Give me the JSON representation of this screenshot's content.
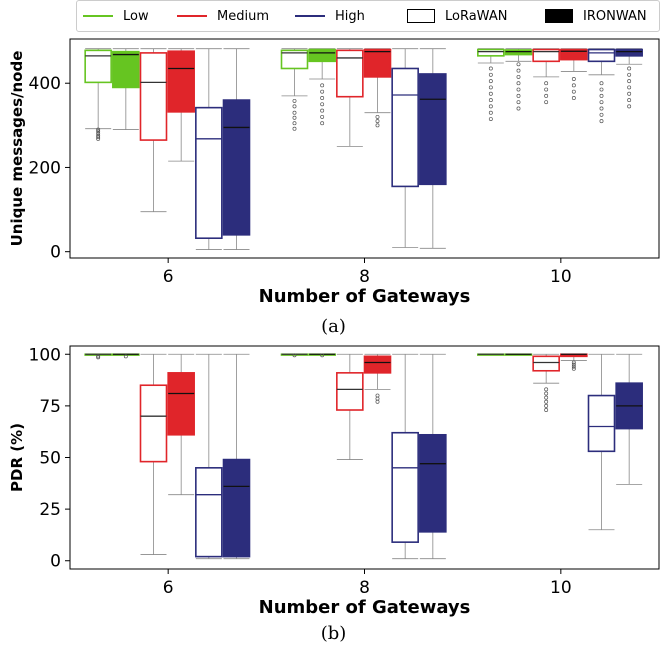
{
  "legend": {
    "levels": [
      {
        "label": "Low",
        "color": "#66c521"
      },
      {
        "label": "Medium",
        "color": "#e0252a"
      },
      {
        "label": "High",
        "color": "#2c2d7c"
      }
    ],
    "schemes": [
      {
        "label": "LoRaWAN",
        "style": "outline"
      },
      {
        "label": "IRONWAN",
        "style": "filled"
      }
    ]
  },
  "chart_data": [
    {
      "type": "box",
      "caption": "(a)",
      "xlabel": "Number of Gateways",
      "ylabel": "Unique messages/node",
      "categories": [
        "6",
        "8",
        "10"
      ],
      "ylim": [
        -15,
        505
      ],
      "yticks": [
        0,
        200,
        400
      ],
      "boxes": [
        {
          "gateways": "6",
          "level": "Low",
          "scheme": "LoRaWAN",
          "whislo": 292,
          "q1": 402,
          "med": 465,
          "q3": 478,
          "whishi": 482,
          "fliers": [
            268,
            272,
            276,
            281,
            286,
            290
          ]
        },
        {
          "gateways": "6",
          "level": "Low",
          "scheme": "IRONWAN",
          "whislo": 290,
          "q1": 390,
          "med": 468,
          "q3": 475,
          "whishi": 482,
          "fliers": []
        },
        {
          "gateways": "6",
          "level": "Medium",
          "scheme": "LoRaWAN",
          "whislo": 95,
          "q1": 265,
          "med": 402,
          "q3": 472,
          "whishi": 482,
          "fliers": []
        },
        {
          "gateways": "6",
          "level": "Medium",
          "scheme": "IRONWAN",
          "whislo": 215,
          "q1": 332,
          "med": 435,
          "q3": 476,
          "whishi": 482,
          "fliers": []
        },
        {
          "gateways": "6",
          "level": "High",
          "scheme": "LoRaWAN",
          "whislo": 5,
          "q1": 32,
          "med": 268,
          "q3": 342,
          "whishi": 482,
          "fliers": []
        },
        {
          "gateways": "6",
          "level": "High",
          "scheme": "IRONWAN",
          "whislo": 5,
          "q1": 40,
          "med": 295,
          "q3": 360,
          "whishi": 482,
          "fliers": []
        },
        {
          "gateways": "8",
          "level": "Low",
          "scheme": "LoRaWAN",
          "whislo": 370,
          "q1": 435,
          "med": 472,
          "q3": 478,
          "whishi": 482,
          "fliers": [
            292,
            305,
            318,
            330,
            345,
            358
          ]
        },
        {
          "gateways": "8",
          "level": "Low",
          "scheme": "IRONWAN",
          "whislo": 410,
          "q1": 452,
          "med": 472,
          "q3": 480,
          "whishi": 482,
          "fliers": [
            305,
            320,
            335,
            350,
            365,
            380,
            395
          ]
        },
        {
          "gateways": "8",
          "level": "Medium",
          "scheme": "LoRaWAN",
          "whislo": 250,
          "q1": 368,
          "med": 460,
          "q3": 478,
          "whishi": 482,
          "fliers": []
        },
        {
          "gateways": "8",
          "level": "Medium",
          "scheme": "IRONWAN",
          "whislo": 330,
          "q1": 415,
          "med": 475,
          "q3": 480,
          "whishi": 482,
          "fliers": [
            300,
            310,
            320
          ]
        },
        {
          "gateways": "8",
          "level": "High",
          "scheme": "LoRaWAN",
          "whislo": 10,
          "q1": 155,
          "med": 372,
          "q3": 435,
          "whishi": 482,
          "fliers": []
        },
        {
          "gateways": "8",
          "level": "High",
          "scheme": "IRONWAN",
          "whislo": 8,
          "q1": 160,
          "med": 362,
          "q3": 422,
          "whishi": 482,
          "fliers": []
        },
        {
          "gateways": "10",
          "level": "Low",
          "scheme": "LoRaWAN",
          "whislo": 448,
          "q1": 465,
          "med": 475,
          "q3": 480,
          "whishi": 482,
          "fliers": [
            315,
            330,
            345,
            360,
            375,
            390,
            405,
            420,
            435
          ]
        },
        {
          "gateways": "10",
          "level": "Low",
          "scheme": "IRONWAN",
          "whislo": 452,
          "q1": 468,
          "med": 475,
          "q3": 479,
          "whishi": 482,
          "fliers": [
            340,
            355,
            370,
            385,
            400,
            415,
            430,
            445
          ]
        },
        {
          "gateways": "10",
          "level": "Medium",
          "scheme": "LoRaWAN",
          "whislo": 415,
          "q1": 452,
          "med": 475,
          "q3": 480,
          "whishi": 482,
          "fliers": [
            355,
            370,
            385,
            400
          ]
        },
        {
          "gateways": "10",
          "level": "Medium",
          "scheme": "IRONWAN",
          "whislo": 428,
          "q1": 456,
          "med": 476,
          "q3": 480,
          "whishi": 482,
          "fliers": [
            365,
            380,
            395,
            410
          ]
        },
        {
          "gateways": "10",
          "level": "High",
          "scheme": "LoRaWAN",
          "whislo": 420,
          "q1": 452,
          "med": 472,
          "q3": 480,
          "whishi": 482,
          "fliers": [
            310,
            325,
            340,
            355,
            370,
            385,
            400
          ]
        },
        {
          "gateways": "10",
          "level": "High",
          "scheme": "IRONWAN",
          "whislo": 445,
          "q1": 465,
          "med": 475,
          "q3": 480,
          "whishi": 482,
          "fliers": [
            345,
            360,
            375,
            390,
            405,
            420,
            435
          ]
        }
      ]
    },
    {
      "type": "box",
      "caption": "(b)",
      "xlabel": "Number of Gateways",
      "ylabel": "PDR (%)",
      "categories": [
        "6",
        "8",
        "10"
      ],
      "ylim": [
        -4,
        104
      ],
      "yticks": [
        0,
        25,
        50,
        75,
        100
      ],
      "boxes": [
        {
          "gateways": "6",
          "level": "Low",
          "scheme": "LoRaWAN",
          "whislo": 99.5,
          "q1": 100,
          "med": 100,
          "q3": 100,
          "whishi": 100,
          "fliers": [
            98.5,
            99
          ]
        },
        {
          "gateways": "6",
          "level": "Low",
          "scheme": "IRONWAN",
          "whislo": 99.5,
          "q1": 100,
          "med": 100,
          "q3": 100,
          "whishi": 100,
          "fliers": [
            99
          ]
        },
        {
          "gateways": "6",
          "level": "Medium",
          "scheme": "LoRaWAN",
          "whislo": 3,
          "q1": 48,
          "med": 70,
          "q3": 85,
          "whishi": 100,
          "fliers": []
        },
        {
          "gateways": "6",
          "level": "Medium",
          "scheme": "IRONWAN",
          "whislo": 32,
          "q1": 61,
          "med": 81,
          "q3": 91,
          "whishi": 100,
          "fliers": []
        },
        {
          "gateways": "6",
          "level": "High",
          "scheme": "LoRaWAN",
          "whislo": 1,
          "q1": 2,
          "med": 32,
          "q3": 45,
          "whishi": 100,
          "fliers": []
        },
        {
          "gateways": "6",
          "level": "High",
          "scheme": "IRONWAN",
          "whislo": 1,
          "q1": 2,
          "med": 36,
          "q3": 49,
          "whishi": 100,
          "fliers": []
        },
        {
          "gateways": "8",
          "level": "Low",
          "scheme": "LoRaWAN",
          "whislo": 100,
          "q1": 100,
          "med": 100,
          "q3": 100,
          "whishi": 100,
          "fliers": [
            99.5
          ]
        },
        {
          "gateways": "8",
          "level": "Low",
          "scheme": "IRONWAN",
          "whislo": 100,
          "q1": 100,
          "med": 100,
          "q3": 100,
          "whishi": 100,
          "fliers": [
            99.5
          ]
        },
        {
          "gateways": "8",
          "level": "Medium",
          "scheme": "LoRaWAN",
          "whislo": 49,
          "q1": 73,
          "med": 83,
          "q3": 91,
          "whishi": 100,
          "fliers": []
        },
        {
          "gateways": "8",
          "level": "Medium",
          "scheme": "IRONWAN",
          "whislo": 83,
          "q1": 91,
          "med": 96,
          "q3": 99,
          "whishi": 100,
          "fliers": [
            77,
            78.5,
            80
          ]
        },
        {
          "gateways": "8",
          "level": "High",
          "scheme": "LoRaWAN",
          "whislo": 1,
          "q1": 9,
          "med": 45,
          "q3": 62,
          "whishi": 100,
          "fliers": []
        },
        {
          "gateways": "8",
          "level": "High",
          "scheme": "IRONWAN",
          "whislo": 1,
          "q1": 14,
          "med": 47,
          "q3": 61,
          "whishi": 100,
          "fliers": []
        },
        {
          "gateways": "10",
          "level": "Low",
          "scheme": "LoRaWAN",
          "whislo": 100,
          "q1": 100,
          "med": 100,
          "q3": 100,
          "whishi": 100,
          "fliers": []
        },
        {
          "gateways": "10",
          "level": "Low",
          "scheme": "IRONWAN",
          "whislo": 100,
          "q1": 100,
          "med": 100,
          "q3": 100,
          "whishi": 100,
          "fliers": []
        },
        {
          "gateways": "10",
          "level": "Medium",
          "scheme": "LoRaWAN",
          "whislo": 86,
          "q1": 92,
          "med": 96,
          "q3": 99,
          "whishi": 100,
          "fliers": [
            73,
            75,
            77,
            79,
            81,
            83
          ]
        },
        {
          "gateways": "10",
          "level": "Medium",
          "scheme": "IRONWAN",
          "whislo": 97,
          "q1": 99,
          "med": 100,
          "q3": 100,
          "whishi": 100,
          "fliers": [
            93,
            94,
            95,
            96
          ]
        },
        {
          "gateways": "10",
          "level": "High",
          "scheme": "LoRaWAN",
          "whislo": 15,
          "q1": 53,
          "med": 65,
          "q3": 80,
          "whishi": 100,
          "fliers": []
        },
        {
          "gateways": "10",
          "level": "High",
          "scheme": "IRONWAN",
          "whislo": 37,
          "q1": 64,
          "med": 75,
          "q3": 86,
          "whishi": 100,
          "fliers": []
        }
      ]
    }
  ]
}
